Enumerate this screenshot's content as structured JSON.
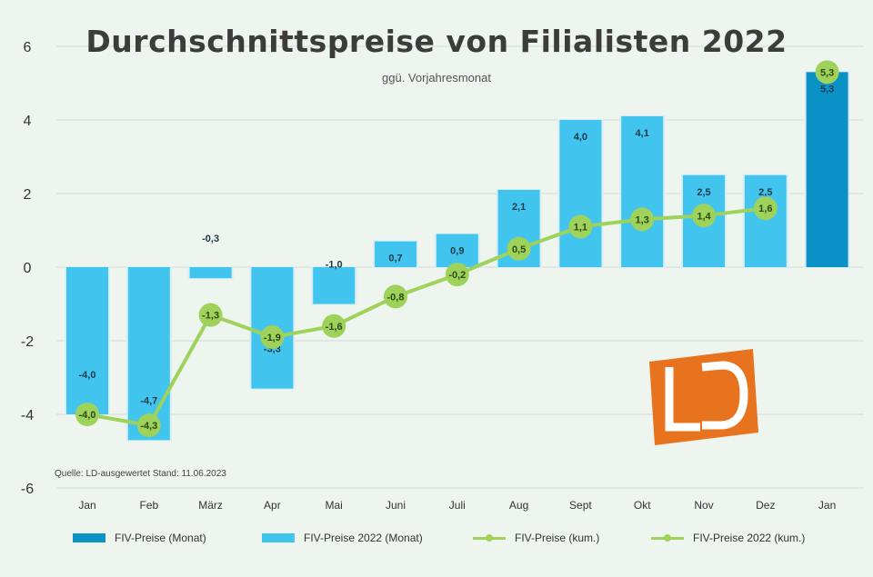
{
  "chart_data": {
    "type": "bar",
    "title": "Durchschnittspreise von Filialisten 2022",
    "subtitle": "ggü. Vorjahresmonat",
    "source": "Quelle: LD-ausgewertet Stand: 11.06.2023",
    "categories": [
      "Jan",
      "Feb",
      "März",
      "Apr",
      "Mai",
      "Juni",
      "Juli",
      "Aug",
      "Sept",
      "Okt",
      "Nov",
      "Dez",
      "Jan"
    ],
    "ylim": [
      -6,
      6
    ],
    "yticks": [
      -6,
      -4,
      -2,
      0,
      2,
      4,
      6
    ],
    "series": [
      {
        "name": "FIV-Preise (Monat)",
        "kind": "bar",
        "color": "#0a92c6",
        "values": [
          null,
          null,
          null,
          null,
          null,
          null,
          null,
          null,
          null,
          null,
          null,
          null,
          5.3
        ]
      },
      {
        "name": "FIV-Preise 2022 (Monat)",
        "kind": "bar",
        "color": "#41c5ee",
        "values": [
          -4.0,
          -4.7,
          -0.3,
          -3.3,
          -1.0,
          0.7,
          0.9,
          2.1,
          4.0,
          4.1,
          2.5,
          2.5,
          null
        ]
      },
      {
        "name": "FIV-Preise (kum.)",
        "kind": "line",
        "color": "#9ed25a",
        "values": [
          null,
          null,
          null,
          null,
          null,
          null,
          null,
          null,
          null,
          null,
          null,
          null,
          5.3
        ]
      },
      {
        "name": "FIV-Preise 2022 (kum.)",
        "kind": "line",
        "color": "#9ed25a",
        "values": [
          -4.0,
          -4.3,
          -1.3,
          -1.9,
          -1.6,
          -0.8,
          -0.2,
          0.5,
          1.1,
          1.3,
          1.4,
          1.6,
          null
        ]
      }
    ],
    "bar_labels": [
      "-4,0",
      "-4,7",
      "-0,3",
      "-3,3",
      "-1,0",
      "0,7",
      "0,9",
      "2,1",
      "4,0",
      "4,1",
      "2,5",
      "2,5",
      "5,3"
    ],
    "line_labels": [
      "-4,0",
      "-4,3",
      "-1,3",
      "-1,9",
      "-1,6",
      "-0,8",
      "-0,2",
      "0,5",
      "1,1",
      "1,3",
      "1,4",
      "1,6",
      "5,3"
    ],
    "grid": "horizontal",
    "legend_position": "bottom"
  },
  "logo": {
    "name": "LD-logo",
    "color": "#e8731e"
  }
}
